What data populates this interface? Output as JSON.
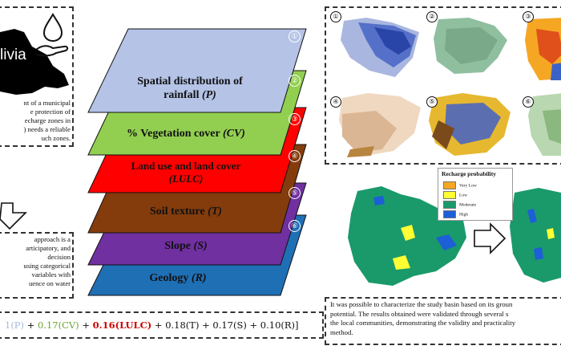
{
  "country_label": "livia",
  "top_left_text": "nt of a municipal\ne protection of\necharge zones in\n) needs a reliable\nuch zones.",
  "mid_left_text": "approach is a\narticipatory, and\ndecision\nusing categorical\nvariables with\nuence on water",
  "layers": [
    {
      "num": "①",
      "label_plain": "Spatial distribution of",
      "label_line2": "rainfall ",
      "label_var": "(P)",
      "color": "#b4c3e6"
    },
    {
      "num": "②",
      "label_plain": "% Vegetation cover ",
      "label_var": "(CV)",
      "color": "#92cf50"
    },
    {
      "num": "③",
      "label_plain": "Land use and land cover",
      "label_var": "(LULC)",
      "color": "#ff0000"
    },
    {
      "num": "④",
      "label_plain": "Soil texture ",
      "label_var": "(T)",
      "color": "#843c0c"
    },
    {
      "num": "⑤",
      "label_plain": "Slope ",
      "label_var": "(S)",
      "color": "#7030a0"
    },
    {
      "num": "⑥",
      "label_plain": "Geology ",
      "label_var": "(R)",
      "color": "#1f6fb5"
    }
  ],
  "map_nums": [
    "①",
    "②",
    "③",
    "④",
    "⑤",
    "⑥"
  ],
  "legend": {
    "title": "Recharge probability",
    "items": [
      {
        "label": "Very Low",
        "color": "#f5a623"
      },
      {
        "label": "Low",
        "color": "#ffff33"
      },
      {
        "label": "Moderate",
        "color": "#1a9a6a"
      },
      {
        "label": "High",
        "color": "#1d5fd6"
      }
    ]
  },
  "formula_terms": [
    {
      "text": "1(P)",
      "color": "#a6b8de"
    },
    {
      "text": " + ",
      "color": "#111111"
    },
    {
      "text": "0.17(CV)",
      "color": "#6aa632"
    },
    {
      "text": " + ",
      "color": "#111111"
    },
    {
      "text": "0.16(LULC)",
      "color": "#d00000"
    },
    {
      "text": " + 0.18(T) + 0.17(S) + 0.10(R)]",
      "color": "#111111"
    }
  ],
  "bottom_right_text": "It was possible to characterize the study basin based on its groun\npotential. The results obtained were validated through several s\nthe local communities, demonstrating the validity and practicality\nmethod."
}
